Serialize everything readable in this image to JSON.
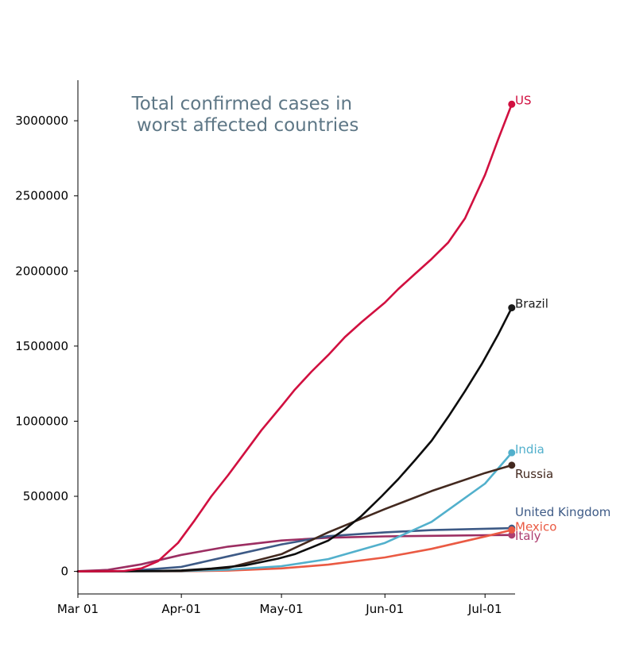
{
  "chart_data": {
    "type": "line",
    "title_lines": [
      "Total confirmed cases in",
      " worst affected countries"
    ],
    "xlabel": "",
    "ylabel": "",
    "x_range": [
      "2020-03-01",
      "2020-07-10"
    ],
    "x_ticks": [
      {
        "date": "2020-03-01",
        "label": "Mar 01"
      },
      {
        "date": "2020-04-01",
        "label": "Apr-01"
      },
      {
        "date": "2020-05-01",
        "label": "May-01"
      },
      {
        "date": "2020-06-01",
        "label": "Jun-01"
      },
      {
        "date": "2020-07-01",
        "label": "Jul-01"
      }
    ],
    "ylim": [
      -150000,
      3270000
    ],
    "y_ticks": [
      {
        "value": 0,
        "label": "0"
      },
      {
        "value": 500000,
        "label": "500000"
      },
      {
        "value": 1000000,
        "label": "1000000"
      },
      {
        "value": 1500000,
        "label": "1500000"
      },
      {
        "value": 2000000,
        "label": "2000000"
      },
      {
        "value": 2500000,
        "label": "2500000"
      },
      {
        "value": 3000000,
        "label": "3000000"
      }
    ],
    "grid": false,
    "legend": "none (labels at line ends)",
    "series": [
      {
        "name": "US",
        "color": "#d11040",
        "end_color": "#d11040",
        "points": [
          [
            "2020-03-01",
            100
          ],
          [
            "2020-03-10",
            1000
          ],
          [
            "2020-03-15",
            3500
          ],
          [
            "2020-03-20",
            20000
          ],
          [
            "2020-03-25",
            68000
          ],
          [
            "2020-03-31",
            190000
          ],
          [
            "2020-04-05",
            340000
          ],
          [
            "2020-04-10",
            500000
          ],
          [
            "2020-04-15",
            640000
          ],
          [
            "2020-04-20",
            790000
          ],
          [
            "2020-04-25",
            940000
          ],
          [
            "2020-05-01",
            1100000
          ],
          [
            "2020-05-05",
            1210000
          ],
          [
            "2020-05-10",
            1330000
          ],
          [
            "2020-05-15",
            1440000
          ],
          [
            "2020-05-20",
            1560000
          ],
          [
            "2020-05-25",
            1660000
          ],
          [
            "2020-06-01",
            1790000
          ],
          [
            "2020-06-05",
            1880000
          ],
          [
            "2020-06-10",
            1980000
          ],
          [
            "2020-06-15",
            2080000
          ],
          [
            "2020-06-20",
            2190000
          ],
          [
            "2020-06-25",
            2350000
          ],
          [
            "2020-07-01",
            2640000
          ],
          [
            "2020-07-05",
            2880000
          ],
          [
            "2020-07-09",
            3110000
          ]
        ]
      },
      {
        "name": "Brazil",
        "color": "#0d0d0d",
        "end_color": "#1a1a1a",
        "points": [
          [
            "2020-03-01",
            0
          ],
          [
            "2020-03-25",
            2500
          ],
          [
            "2020-04-01",
            6500
          ],
          [
            "2020-04-10",
            19000
          ],
          [
            "2020-04-20",
            40000
          ],
          [
            "2020-04-30",
            85000
          ],
          [
            "2020-05-05",
            115000
          ],
          [
            "2020-05-10",
            160000
          ],
          [
            "2020-05-15",
            205000
          ],
          [
            "2020-05-20",
            280000
          ],
          [
            "2020-05-25",
            370000
          ],
          [
            "2020-05-31",
            500000
          ],
          [
            "2020-06-05",
            615000
          ],
          [
            "2020-06-10",
            740000
          ],
          [
            "2020-06-15",
            870000
          ],
          [
            "2020-06-20",
            1030000
          ],
          [
            "2020-06-25",
            1200000
          ],
          [
            "2020-06-30",
            1380000
          ],
          [
            "2020-07-05",
            1580000
          ],
          [
            "2020-07-09",
            1755000
          ]
        ]
      },
      {
        "name": "India",
        "color": "#52b0cc",
        "end_color": "#52b0cc",
        "points": [
          [
            "2020-03-01",
            0
          ],
          [
            "2020-04-01",
            1800
          ],
          [
            "2020-04-15",
            12000
          ],
          [
            "2020-05-01",
            35000
          ],
          [
            "2020-05-15",
            82000
          ],
          [
            "2020-06-01",
            190000
          ],
          [
            "2020-06-15",
            330000
          ],
          [
            "2020-07-01",
            585000
          ],
          [
            "2020-07-09",
            790000
          ]
        ]
      },
      {
        "name": "Russia",
        "color": "#43291f",
        "end_color": "#43291f",
        "points": [
          [
            "2020-03-01",
            0
          ],
          [
            "2020-04-01",
            2800
          ],
          [
            "2020-04-15",
            24000
          ],
          [
            "2020-05-01",
            115000
          ],
          [
            "2020-05-15",
            260000
          ],
          [
            "2020-06-01",
            415000
          ],
          [
            "2020-06-15",
            535000
          ],
          [
            "2020-07-01",
            655000
          ],
          [
            "2020-07-09",
            707000
          ]
        ]
      },
      {
        "name": "United Kingdom",
        "color": "#3d5a86",
        "end_color": "#3d5a86",
        "points": [
          [
            "2020-03-01",
            30
          ],
          [
            "2020-03-15",
            1400
          ],
          [
            "2020-04-01",
            30000
          ],
          [
            "2020-04-15",
            100000
          ],
          [
            "2020-05-01",
            180000
          ],
          [
            "2020-05-15",
            235000
          ],
          [
            "2020-06-01",
            260000
          ],
          [
            "2020-06-15",
            275000
          ],
          [
            "2020-07-01",
            284000
          ],
          [
            "2020-07-09",
            288000
          ]
        ]
      },
      {
        "name": "Mexico",
        "color": "#ea5a43",
        "end_color": "#ea5a43",
        "points": [
          [
            "2020-03-01",
            0
          ],
          [
            "2020-04-01",
            1400
          ],
          [
            "2020-04-15",
            5400
          ],
          [
            "2020-05-01",
            20000
          ],
          [
            "2020-05-15",
            45000
          ],
          [
            "2020-06-01",
            93000
          ],
          [
            "2020-06-15",
            150000
          ],
          [
            "2020-07-01",
            232000
          ],
          [
            "2020-07-09",
            276000
          ]
        ]
      },
      {
        "name": "Italy",
        "color": "#9c2e62",
        "end_color": "#ad3e70",
        "points": [
          [
            "2020-03-01",
            1700
          ],
          [
            "2020-03-10",
            10000
          ],
          [
            "2020-03-20",
            47000
          ],
          [
            "2020-04-01",
            110000
          ],
          [
            "2020-04-15",
            165000
          ],
          [
            "2020-05-01",
            206000
          ],
          [
            "2020-05-15",
            224000
          ],
          [
            "2020-06-01",
            233000
          ],
          [
            "2020-06-15",
            237000
          ],
          [
            "2020-07-01",
            241000
          ],
          [
            "2020-07-09",
            242000
          ]
        ]
      }
    ]
  }
}
